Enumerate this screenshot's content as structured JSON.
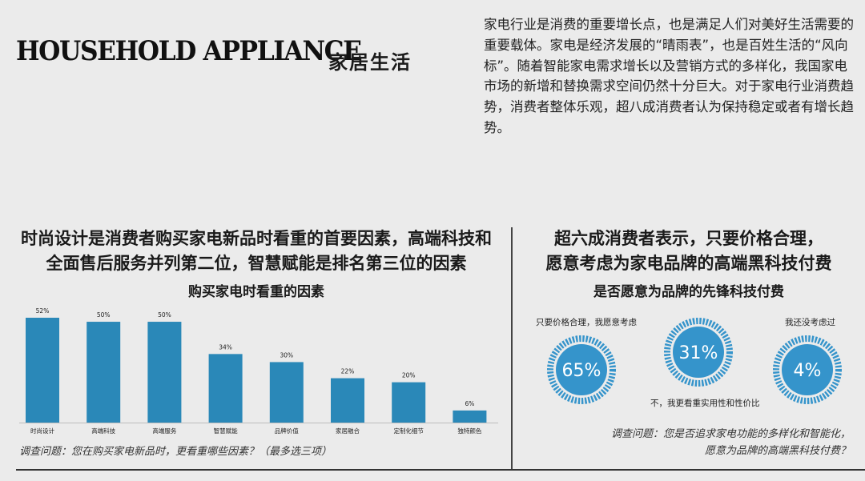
{
  "header": {
    "title_en": "HOUSEHOLD APPLIANCE",
    "title_zh": "家居生活",
    "intro": "家电行业是消费的重要增长点，也是满足人们对美好生活需要的重要载体。家电是经济发展的“晴雨表”，也是百姓生活的“风向标”。随着智能家电需求增长以及营销方式的多样化，我国家电市场的新增和替换需求空间仍然十分巨大。对于家电行业消费趋势，消费者整体乐观，超八成消费者认为保持稳定或者有增长趋势。"
  },
  "left": {
    "headline_line1": "时尚设计是消费者购买家电新品时看重的首要因素，高端科技和",
    "headline_line2": "全面售后服务并列第二位，智慧赋能是排名第三位的因素",
    "footnote": "调查问题：您在购买家电新品时，更看重哪些因素？（最多选三项）"
  },
  "right": {
    "headline_line1": "超六成消费者表示，只要价格合理，",
    "headline_line2": "愿意考虑为家电品牌的高端黑科技付费",
    "footnote_line1": "调查问题：您是否追求家电功能的多样化和智能化，",
    "footnote_line2": "愿意为品牌的高端黑科技付费？"
  },
  "colors": {
    "bar": "#2a88b8",
    "donut_fill": "#3594cb",
    "donut_ring": "#3594cb",
    "background": "#ebebeb"
  },
  "chart_data": [
    {
      "type": "bar",
      "title": "购买家电时看重的因素",
      "categories": [
        "时尚设计",
        "高端科技",
        "高端服务",
        "智慧赋能",
        "品牌价值",
        "家居融合",
        "定制化细节",
        "独特颜色"
      ],
      "values": [
        52,
        50,
        50,
        34,
        30,
        22,
        20,
        6
      ],
      "value_labels": [
        "52%",
        "50%",
        "50%",
        "34%",
        "30%",
        "22%",
        "20%",
        "6%"
      ],
      "ylim": [
        0,
        52
      ],
      "grid": false,
      "xlabel": "",
      "ylabel": ""
    },
    {
      "type": "pie",
      "title": "是否愿意为品牌的先锋科技付费",
      "series": [
        {
          "name": "只要价格合理，我愿意考虑",
          "value": 65,
          "value_label": "65%"
        },
        {
          "name": "不，我更看重实用性和性价比",
          "value": 31,
          "value_label": "31%"
        },
        {
          "name": "我还没考虑过",
          "value": 4,
          "value_label": "4%"
        }
      ]
    }
  ]
}
